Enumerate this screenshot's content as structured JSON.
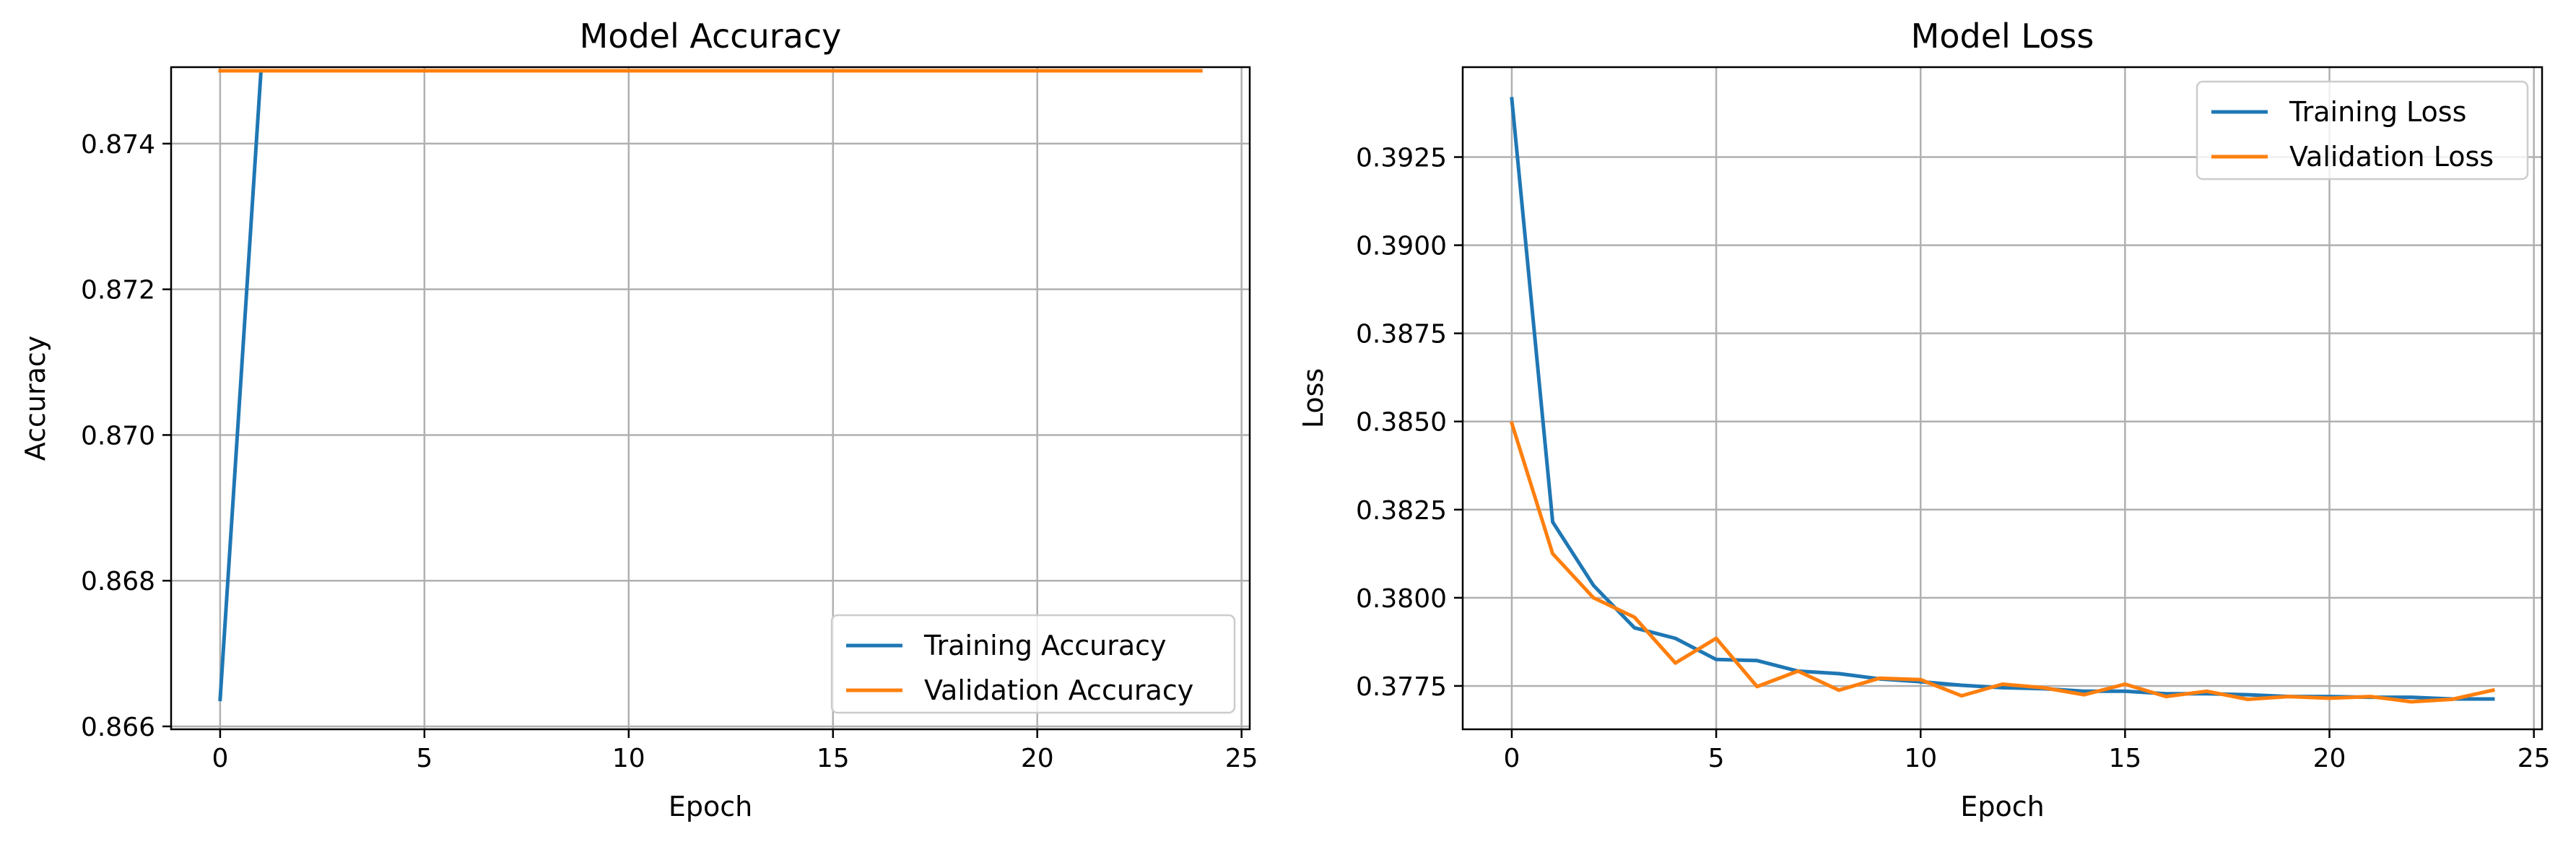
{
  "chart_data": [
    {
      "type": "line",
      "title": "Model Accuracy",
      "xlabel": "Epoch",
      "ylabel": "Accuracy",
      "xlim": [
        -1.2,
        25.2
      ],
      "ylim": [
        0.86596,
        0.87505
      ],
      "xticks": [
        0,
        5,
        10,
        15,
        20,
        25
      ],
      "xtick_labels": [
        "0",
        "5",
        "10",
        "15",
        "20",
        "25"
      ],
      "yticks": [
        0.866,
        0.868,
        0.87,
        0.872,
        0.874
      ],
      "ytick_labels": [
        "0.866",
        "0.868",
        "0.870",
        "0.872",
        "0.874"
      ],
      "grid": true,
      "legend_position": "lower-right",
      "series": [
        {
          "name": "Training Accuracy",
          "color": "#1f77b4",
          "x": [
            0,
            1,
            2,
            3,
            4,
            5,
            6,
            7,
            8,
            9,
            10,
            11,
            12,
            13,
            14,
            15,
            16,
            17,
            18,
            19,
            20,
            21,
            22,
            23,
            24
          ],
          "values": [
            0.86637,
            0.875,
            0.875,
            0.875,
            0.875,
            0.875,
            0.875,
            0.875,
            0.875,
            0.875,
            0.875,
            0.875,
            0.875,
            0.875,
            0.875,
            0.875,
            0.875,
            0.875,
            0.875,
            0.875,
            0.875,
            0.875,
            0.875,
            0.875,
            0.875
          ]
        },
        {
          "name": "Validation Accuracy",
          "color": "#ff7f0e",
          "x": [
            0,
            1,
            2,
            3,
            4,
            5,
            6,
            7,
            8,
            9,
            10,
            11,
            12,
            13,
            14,
            15,
            16,
            17,
            18,
            19,
            20,
            21,
            22,
            23,
            24
          ],
          "values": [
            0.875,
            0.875,
            0.875,
            0.875,
            0.875,
            0.875,
            0.875,
            0.875,
            0.875,
            0.875,
            0.875,
            0.875,
            0.875,
            0.875,
            0.875,
            0.875,
            0.875,
            0.875,
            0.875,
            0.875,
            0.875,
            0.875,
            0.875,
            0.875,
            0.875
          ]
        }
      ]
    },
    {
      "type": "line",
      "title": "Model Loss",
      "xlabel": "Epoch",
      "ylabel": "Loss",
      "xlim": [
        -1.2,
        25.2
      ],
      "ylim": [
        0.37627,
        0.39505
      ],
      "xticks": [
        0,
        5,
        10,
        15,
        20,
        25
      ],
      "xtick_labels": [
        "0",
        "5",
        "10",
        "15",
        "20",
        "25"
      ],
      "yticks": [
        0.3775,
        0.38,
        0.3825,
        0.385,
        0.3875,
        0.39,
        0.3925
      ],
      "ytick_labels": [
        "0.3775",
        "0.3800",
        "0.3825",
        "0.3850",
        "0.3875",
        "0.3900",
        "0.3925"
      ],
      "grid": true,
      "legend_position": "top-right",
      "series": [
        {
          "name": "Training Loss",
          "color": "#1f77b4",
          "x": [
            0,
            1,
            2,
            3,
            4,
            5,
            6,
            7,
            8,
            9,
            10,
            11,
            12,
            13,
            14,
            15,
            16,
            17,
            18,
            19,
            20,
            21,
            22,
            23,
            24
          ],
          "values": [
            0.39415,
            0.38215,
            0.38035,
            0.37915,
            0.37885,
            0.37825,
            0.37822,
            0.37792,
            0.37785,
            0.3777,
            0.37762,
            0.37752,
            0.37745,
            0.37742,
            0.37735,
            0.37735,
            0.37728,
            0.37728,
            0.37725,
            0.3772,
            0.3772,
            0.37718,
            0.37718,
            0.37713,
            0.37713
          ]
        },
        {
          "name": "Validation Loss",
          "color": "#ff7f0e",
          "x": [
            0,
            1,
            2,
            3,
            4,
            5,
            6,
            7,
            8,
            9,
            10,
            11,
            12,
            13,
            14,
            15,
            16,
            17,
            18,
            19,
            20,
            21,
            22,
            23,
            24
          ],
          "values": [
            0.38495,
            0.38125,
            0.38,
            0.37945,
            0.37815,
            0.37885,
            0.37748,
            0.37792,
            0.37738,
            0.37772,
            0.37768,
            0.37722,
            0.37755,
            0.37745,
            0.37725,
            0.37755,
            0.3772,
            0.37735,
            0.37712,
            0.3772,
            0.37715,
            0.3772,
            0.37705,
            0.37712,
            0.37738
          ]
        }
      ]
    }
  ]
}
